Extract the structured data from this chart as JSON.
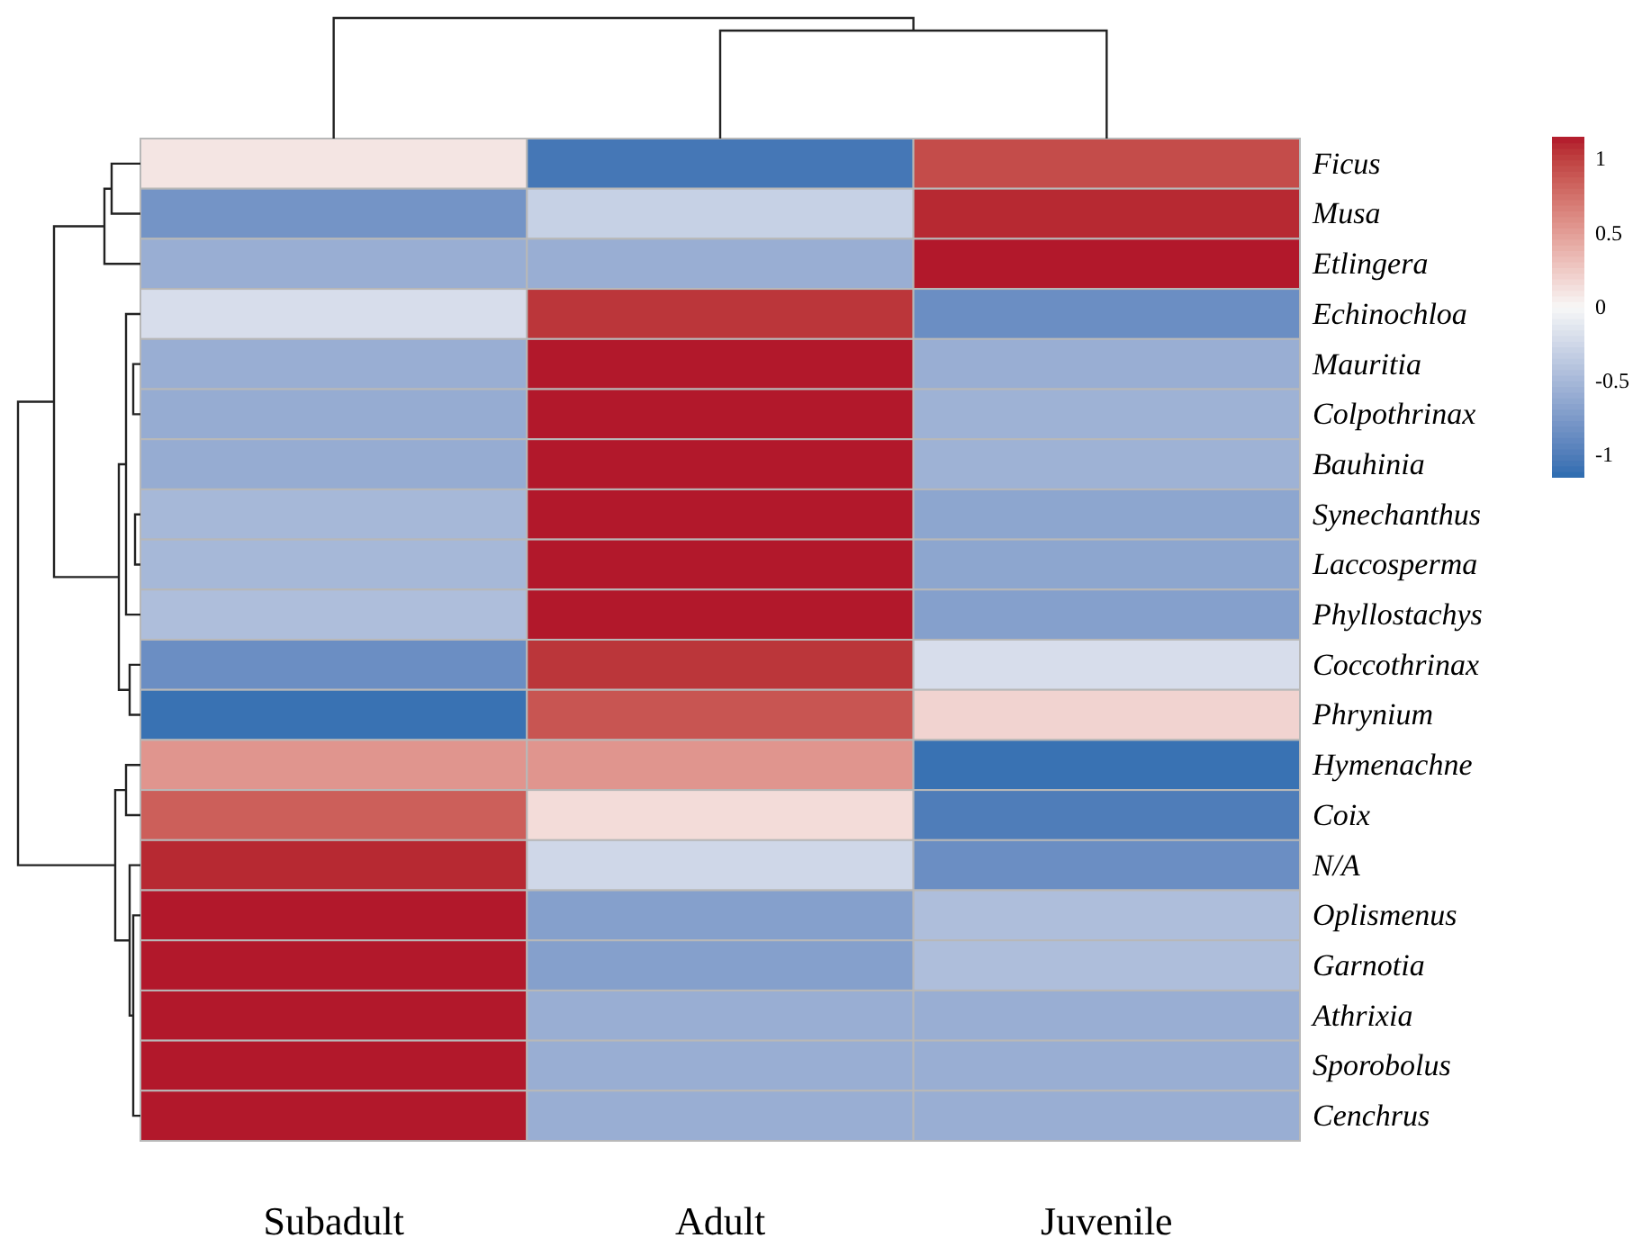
{
  "chart_data": {
    "type": "heatmap",
    "categories": [
      "Subadult",
      "Adult",
      "Juvenile"
    ],
    "y_categories": [
      "Ficus",
      "Musa",
      "Etlingera",
      "Echinochloa",
      "Mauritia",
      "Colpothrinax",
      "Bauhinia",
      "Synechanthus",
      "Laccosperma",
      "Phyllostachys",
      "Coccothrinax",
      "Phrynium",
      "Hymenachne",
      "Coix",
      "N/A",
      "Oplismenus",
      "Garnotia",
      "Athrixia",
      "Sporobolus",
      "Cenchrus"
    ],
    "cells": [
      [
        0.1,
        -1.05,
        0.95
      ],
      [
        -0.8,
        -0.3,
        1.1
      ],
      [
        -0.58,
        -0.58,
        1.15
      ],
      [
        -0.2,
        1.05,
        -0.85
      ],
      [
        -0.58,
        1.15,
        -0.58
      ],
      [
        -0.6,
        1.15,
        -0.55
      ],
      [
        -0.6,
        1.15,
        -0.55
      ],
      [
        -0.5,
        1.15,
        -0.65
      ],
      [
        -0.5,
        1.15,
        -0.65
      ],
      [
        -0.45,
        1.15,
        -0.7
      ],
      [
        -0.85,
        1.05,
        -0.2
      ],
      [
        -1.1,
        0.9,
        0.2
      ],
      [
        0.55,
        0.55,
        -1.1
      ],
      [
        0.85,
        0.15,
        -1.0
      ],
      [
        1.1,
        -0.25,
        -0.85
      ],
      [
        1.15,
        -0.7,
        -0.45
      ],
      [
        1.15,
        -0.7,
        -0.45
      ],
      [
        1.15,
        -0.58,
        -0.58
      ],
      [
        1.15,
        -0.58,
        -0.58
      ],
      [
        1.15,
        -0.58,
        -0.58
      ]
    ],
    "clim": [
      -1.15,
      1.15
    ],
    "cticks": [
      -1,
      -0.5,
      0,
      0.5,
      1
    ]
  }
}
